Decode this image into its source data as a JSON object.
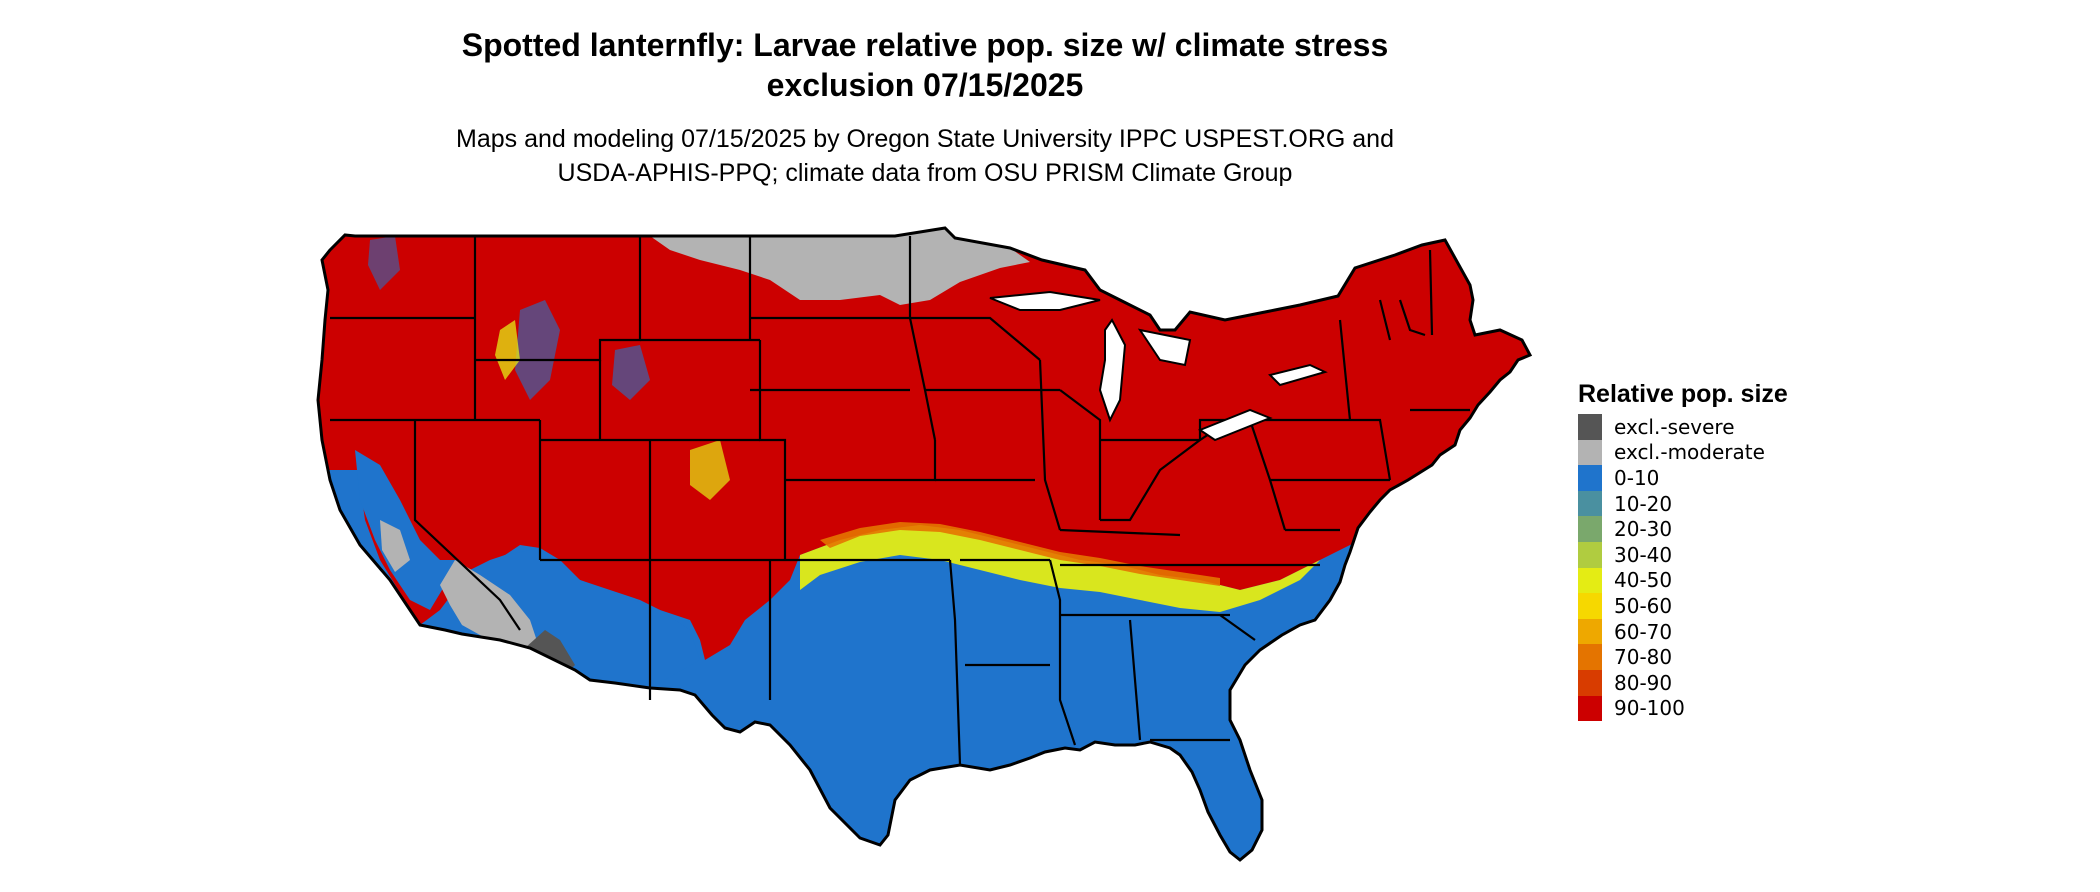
{
  "map": {
    "title_line1": "Spotted lanternfly: Larvae relative pop. size w/ climate stress",
    "title_line2": "exclusion 07/15/2025",
    "subtitle_line1": "Maps and modeling 07/15/2025 by Oregon State University IPPC USPEST.ORG and",
    "subtitle_line2": "USDA-APHIS-PPQ; climate data from OSU PRISM Climate Group"
  },
  "legend": {
    "title": "Relative pop. size",
    "items": [
      {
        "label": "excl.-severe",
        "color": "#555555"
      },
      {
        "label": "excl.-moderate",
        "color": "#b3b3b3"
      },
      {
        "label": "0-10",
        "color": "#1f74cc"
      },
      {
        "label": "10-20",
        "color": "#4a90a0"
      },
      {
        "label": "20-30",
        "color": "#7aa86c"
      },
      {
        "label": "30-40",
        "color": "#b0cc40"
      },
      {
        "label": "40-50",
        "color": "#e4ec14"
      },
      {
        "label": "50-60",
        "color": "#f6d800"
      },
      {
        "label": "60-70",
        "color": "#eea800"
      },
      {
        "label": "70-80",
        "color": "#e47400"
      },
      {
        "label": "80-90",
        "color": "#d83c00"
      },
      {
        "label": "90-100",
        "color": "#cc0000"
      }
    ]
  }
}
